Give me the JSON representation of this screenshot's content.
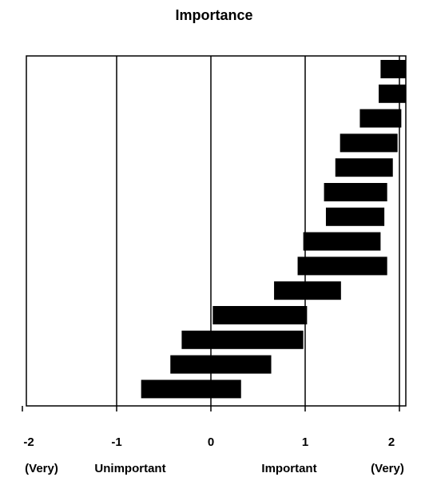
{
  "chart_data": {
    "type": "bar",
    "orientation": "horizontal",
    "subtype": "floating-range",
    "title": "Importance",
    "xlim": [
      -2,
      2
    ],
    "x_ticks": [
      -2,
      -1,
      0,
      1,
      2
    ],
    "x_tick_labels": [
      "-2",
      "-1",
      "0",
      "1",
      "2"
    ],
    "x_sublabels": [
      "(Very)",
      "Unimportant",
      "Important",
      "(Very)"
    ],
    "gridlines": "vertical",
    "bar_color": "#000000",
    "bars": [
      {
        "start": 1.8,
        "end": 2.1
      },
      {
        "start": 1.78,
        "end": 2.1
      },
      {
        "start": 1.58,
        "end": 2.02
      },
      {
        "start": 1.37,
        "end": 1.98
      },
      {
        "start": 1.32,
        "end": 1.93
      },
      {
        "start": 1.2,
        "end": 1.87
      },
      {
        "start": 1.22,
        "end": 1.84
      },
      {
        "start": 0.98,
        "end": 1.8
      },
      {
        "start": 0.92,
        "end": 1.87
      },
      {
        "start": 0.67,
        "end": 1.38
      },
      {
        "start": 0.02,
        "end": 1.02
      },
      {
        "start": -0.31,
        "end": 0.98
      },
      {
        "start": -0.43,
        "end": 0.64
      },
      {
        "start": -0.74,
        "end": 0.32
      }
    ]
  }
}
